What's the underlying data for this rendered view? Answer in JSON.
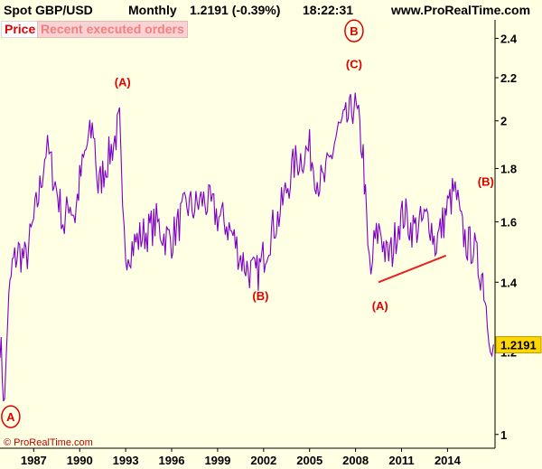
{
  "header": {
    "instrument": "Spot GBP/USD",
    "timeframe": "Monthly",
    "last_change": "1.2191 (-0.39%)",
    "time": "18:22:31",
    "site": "www.ProRealTime.com"
  },
  "tabs": {
    "price": "Price",
    "orders": "Recent executed orders"
  },
  "credit": "© ProRealTime.com",
  "colors": {
    "background": "#ffffe4",
    "price_line": "#7d00c8",
    "annotation": "#e00000",
    "last_price_badge": "#ffd700",
    "trendline": "#e82020"
  },
  "chart_data": {
    "type": "line",
    "title": "",
    "xlabel": "",
    "ylabel": "",
    "ylim": [
      0.97,
      2.5
    ],
    "y_scale": "log",
    "xlim": [
      1984.8,
      2017.1
    ],
    "x_ticks": [
      "1987",
      "1990",
      "1993",
      "1996",
      "1999",
      "2002",
      "2005",
      "2008",
      "2011",
      "2014"
    ],
    "y_ticks": [
      "1",
      "1.2",
      "1.4",
      "1.6",
      "1.8",
      "2",
      "2.2",
      "2.4"
    ],
    "last_price": "1.2191",
    "series": [
      {
        "values_note": "",
        "x": [
          1984.8,
          1985.1,
          1985.3,
          1985.6,
          1986.0,
          1986.5,
          1987.0,
          1987.4,
          1987.8,
          1988.0,
          1988.4,
          1988.8,
          1989.0,
          1989.3,
          1989.7,
          1990.0,
          1990.5,
          1990.9,
          1991.2,
          1991.5,
          1991.9,
          1992.3,
          1992.6,
          1992.8,
          1993.0,
          1993.5,
          1994.0,
          1994.5,
          1995.0,
          1995.5,
          1996.0,
          1996.5,
          1997.0,
          1997.5,
          1998.0,
          1998.5,
          1999.0,
          1999.5,
          2000.0,
          2000.5,
          2001.0,
          2001.5,
          2001.8,
          2002.2,
          2002.6,
          2003.0,
          2003.5,
          2004.0,
          2004.5,
          2005.0,
          2005.5,
          2005.9,
          2006.3,
          2006.8,
          2007.2,
          2007.6,
          2007.9,
          2008.2,
          2008.5,
          2008.8,
          2009.0,
          2009.2,
          2009.6,
          2010.0,
          2010.4,
          2010.8,
          2011.2,
          2011.6,
          2012.0,
          2012.4,
          2012.8,
          2013.2,
          2013.6,
          2014.0,
          2014.4,
          2014.6,
          2014.9,
          2015.3,
          2015.7,
          2016.0,
          2016.3,
          2016.6,
          2016.8,
          2017.0
        ],
        "y": [
          1.24,
          1.06,
          1.3,
          1.45,
          1.5,
          1.47,
          1.6,
          1.72,
          1.88,
          1.85,
          1.74,
          1.64,
          1.58,
          1.68,
          1.62,
          1.75,
          1.9,
          1.97,
          1.72,
          1.78,
          1.85,
          1.92,
          1.99,
          1.6,
          1.5,
          1.52,
          1.55,
          1.57,
          1.6,
          1.55,
          1.54,
          1.6,
          1.66,
          1.65,
          1.68,
          1.66,
          1.62,
          1.6,
          1.55,
          1.48,
          1.44,
          1.42,
          1.45,
          1.52,
          1.58,
          1.62,
          1.72,
          1.82,
          1.85,
          1.88,
          1.76,
          1.74,
          1.82,
          1.95,
          1.98,
          2.02,
          2.08,
          1.99,
          1.85,
          1.5,
          1.42,
          1.52,
          1.58,
          1.48,
          1.5,
          1.6,
          1.63,
          1.58,
          1.58,
          1.6,
          1.62,
          1.52,
          1.58,
          1.65,
          1.71,
          1.69,
          1.58,
          1.52,
          1.52,
          1.45,
          1.42,
          1.3,
          1.25,
          1.22
        ]
      }
    ],
    "trendline": {
      "x": [
        2009.5,
        2013.9
      ],
      "y": [
        1.4,
        1.485
      ]
    },
    "annotations": [
      {
        "text": "A",
        "x": 1985.5,
        "y": 1.04,
        "circled": true
      },
      {
        "text": "(A)",
        "x": 1992.8,
        "y": 2.18,
        "circled": false
      },
      {
        "text": "B",
        "x": 2007.9,
        "y": 2.44,
        "circled": true
      },
      {
        "text": "(C)",
        "x": 2007.9,
        "y": 2.27,
        "circled": false
      },
      {
        "text": "(B)",
        "x": 2001.8,
        "y": 1.36,
        "circled": false
      },
      {
        "text": "(A)",
        "x": 2009.6,
        "y": 1.33,
        "circled": false
      },
      {
        "text": "(B)",
        "x": 2016.5,
        "y": 1.75,
        "circled": false
      }
    ]
  }
}
